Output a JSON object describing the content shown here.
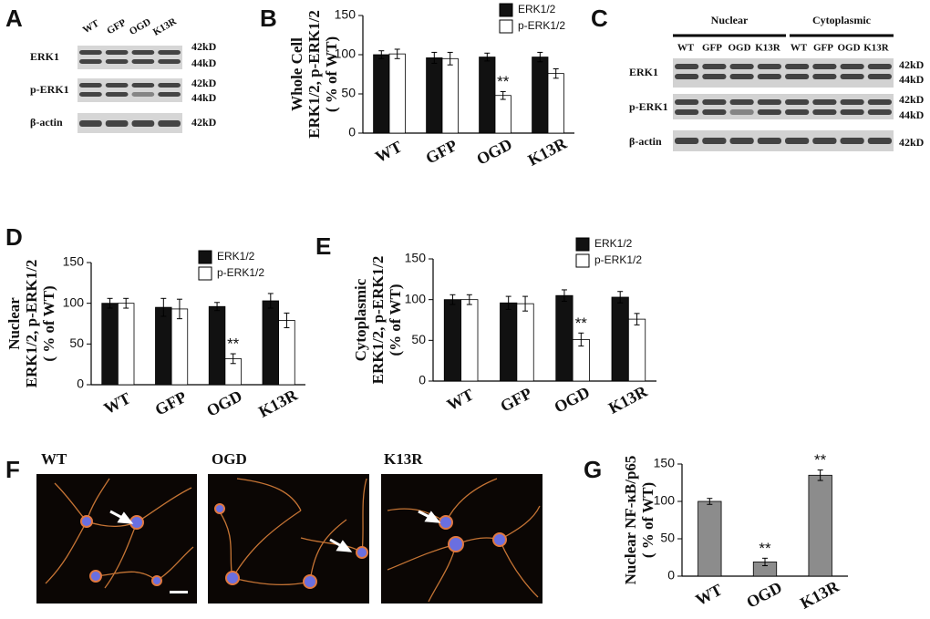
{
  "panel_labels": [
    "A",
    "B",
    "C",
    "D",
    "E",
    "F",
    "G"
  ],
  "blot_a": {
    "lanes": [
      "WT",
      "GFP",
      "OGD",
      "K13R"
    ],
    "rows": [
      {
        "name": "ERK1",
        "sizes": [
          "42kD",
          "44kD"
        ]
      },
      {
        "name": "p-ERK1",
        "sizes": [
          "42kD",
          "44kD"
        ]
      },
      {
        "name": "β-actin",
        "sizes": [
          "42kD"
        ]
      }
    ]
  },
  "blot_c": {
    "groups": [
      "Nuclear",
      "Cytoplasmic"
    ],
    "lanes": [
      "WT",
      "GFP",
      "OGD",
      "K13R",
      "WT",
      "GFP",
      "OGD",
      "K13R"
    ],
    "rows": [
      {
        "name": "ERK1",
        "sizes": [
          "42kD",
          "44kD"
        ]
      },
      {
        "name": "p-ERK1",
        "sizes": [
          "42kD",
          "44kD"
        ]
      },
      {
        "name": "β-actin",
        "sizes": [
          "42kD"
        ]
      }
    ]
  },
  "micrographs": [
    "WT",
    "OGD",
    "K13R"
  ],
  "chart_data": [
    {
      "type": "bar",
      "y_label": [
        "Whole Cell",
        "ERK1/2, p-ERK1/2",
        "( % of WT)"
      ],
      "categories": [
        "WT",
        "GFP",
        "OGD",
        "K13R"
      ],
      "series": [
        {
          "name": "ERK1/2",
          "color": "#111111",
          "values": [
            100,
            96,
            97,
            97
          ],
          "errors": [
            5,
            7,
            5,
            6
          ]
        },
        {
          "name": "p-ERK1/2",
          "color": "#ffffff",
          "values": [
            101,
            95,
            48,
            76
          ],
          "errors": [
            6,
            8,
            5,
            6
          ]
        }
      ],
      "annotations": [
        {
          "text": "**",
          "category": "OGD",
          "series": "p-ERK1/2"
        }
      ],
      "ylim": [
        0,
        150
      ],
      "yticks": [
        0,
        50,
        100,
        150
      ],
      "legend": "upper right"
    },
    {
      "type": "bar",
      "y_label": [
        "Nuclear",
        "ERK1/2, p-ERK1/2",
        "( % of WT)"
      ],
      "categories": [
        "WT",
        "GFP",
        "OGD",
        "K13R"
      ],
      "series": [
        {
          "name": "ERK1/2",
          "color": "#111111",
          "values": [
            100,
            95,
            96,
            103
          ],
          "errors": [
            6,
            11,
            5,
            9
          ]
        },
        {
          "name": "p-ERK1/2",
          "color": "#ffffff",
          "values": [
            100,
            93,
            32,
            79
          ],
          "errors": [
            6,
            12,
            6,
            9
          ]
        }
      ],
      "annotations": [
        {
          "text": "**",
          "category": "OGD",
          "series": "p-ERK1/2"
        }
      ],
      "ylim": [
        0,
        150
      ],
      "yticks": [
        0,
        50,
        100,
        150
      ],
      "legend": "upper right"
    },
    {
      "type": "bar",
      "y_label": [
        "Cytoplasmic",
        "ERK1/2, p-ERK1/2",
        "(% of  WT)"
      ],
      "categories": [
        "WT",
        "GFP",
        "OGD",
        "K13R"
      ],
      "series": [
        {
          "name": "ERK1/2",
          "color": "#111111",
          "values": [
            100,
            96,
            105,
            103
          ],
          "errors": [
            6,
            8,
            7,
            7
          ]
        },
        {
          "name": "p-ERK1/2",
          "color": "#ffffff",
          "values": [
            100,
            95,
            51,
            76
          ],
          "errors": [
            6,
            9,
            8,
            7
          ]
        }
      ],
      "annotations": [
        {
          "text": "**",
          "category": "OGD",
          "series": "p-ERK1/2"
        }
      ],
      "ylim": [
        0,
        150
      ],
      "yticks": [
        0,
        50,
        100,
        150
      ],
      "legend": "upper right"
    },
    {
      "type": "bar",
      "y_label": [
        "Nuclear NF-κB/p65",
        "( % of  WT)"
      ],
      "categories": [
        "WT",
        "OGD",
        "K13R"
      ],
      "series": [
        {
          "color": "#8c8c8c",
          "values": [
            100,
            19,
            135
          ],
          "errors": [
            4,
            5,
            7
          ]
        }
      ],
      "annotations": [
        {
          "text": "**",
          "category": "OGD"
        },
        {
          "text": "**",
          "category": "K13R"
        }
      ],
      "ylim": [
        0,
        150
      ],
      "yticks": [
        0,
        50,
        100,
        150
      ]
    }
  ]
}
